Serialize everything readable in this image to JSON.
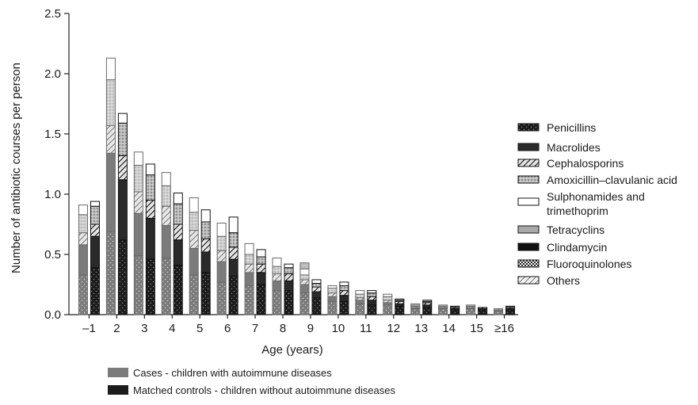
{
  "chart_data": {
    "type": "bar",
    "stacked": true,
    "grouped": true,
    "title": "",
    "xlabel": "Age (years)",
    "ylabel": "Number of antibiotic courses per person",
    "ylim": [
      0,
      2.5
    ],
    "yticks": [
      "0.0",
      "0.5",
      "1.0",
      "1.5",
      "2.0",
      "2.5"
    ],
    "yticks_values": [
      0,
      0.5,
      1.0,
      1.5,
      2.0,
      2.5
    ],
    "categories": [
      "–1",
      "2",
      "3",
      "4",
      "5",
      "6",
      "7",
      "8",
      "9",
      "10",
      "11",
      "12",
      "13",
      "14",
      "15",
      "≥16"
    ],
    "groups": [
      {
        "name": "Cases - children with autoimmune diseases",
        "color": "#7b7b7b"
      },
      {
        "name": "Matched controls - children without autoimmune diseases",
        "color": "#1c1c1c"
      }
    ],
    "drug_classes": [
      {
        "name": "Penicillins",
        "pattern": "dots"
      },
      {
        "name": "Macrolides",
        "pattern": "solid"
      },
      {
        "name": "Cephalosporins",
        "pattern": "hatch"
      },
      {
        "name": "Amoxicillin–clavulanic acid",
        "pattern": "crosshatch"
      },
      {
        "name": "Sulphonamides and trimethoprim",
        "pattern": "white"
      },
      {
        "name": "Tetracyclins",
        "pattern": "light"
      },
      {
        "name": "Clindamycin",
        "pattern": "dark"
      },
      {
        "name": "Fluoroquinolones",
        "pattern": "checker"
      },
      {
        "name": "Others",
        "pattern": "lighthatch"
      }
    ],
    "cases": [
      [
        0.33,
        0.25,
        0.1,
        0.15,
        0.08
      ],
      [
        0.69,
        0.65,
        0.23,
        0.38,
        0.18
      ],
      [
        0.49,
        0.35,
        0.18,
        0.22,
        0.11
      ],
      [
        0.47,
        0.27,
        0.16,
        0.17,
        0.11
      ],
      [
        0.33,
        0.22,
        0.15,
        0.15,
        0.12
      ],
      [
        0.27,
        0.17,
        0.09,
        0.12,
        0.11
      ],
      [
        0.24,
        0.11,
        0.07,
        0.08,
        0.09
      ],
      [
        0.2,
        0.08,
        0.06,
        0.06,
        0.07
      ],
      [
        0.18,
        0.07,
        0.04,
        0.04,
        0.05,
        0.05
      ],
      [
        0.11,
        0.04,
        0.03,
        0.04,
        0.02
      ],
      [
        0.09,
        0.03,
        0.02,
        0.03,
        0.03
      ],
      [
        0.08,
        0.02,
        0.02,
        0.03,
        0.02
      ],
      [
        0.05,
        0.01,
        0.01,
        0.01,
        0.01
      ],
      [
        0.05,
        0.01,
        0.01,
        0.01
      ],
      [
        0.05,
        0.01,
        0.01,
        0.01
      ],
      [
        0.03,
        0.01,
        0.01
      ]
    ],
    "controls": [
      [
        0.39,
        0.26,
        0.1,
        0.15,
        0.04
      ],
      [
        0.62,
        0.5,
        0.2,
        0.27,
        0.08
      ],
      [
        0.46,
        0.34,
        0.15,
        0.21,
        0.09
      ],
      [
        0.41,
        0.21,
        0.13,
        0.17,
        0.09
      ],
      [
        0.35,
        0.17,
        0.11,
        0.14,
        0.1
      ],
      [
        0.32,
        0.14,
        0.1,
        0.12,
        0.13
      ],
      [
        0.25,
        0.1,
        0.07,
        0.06,
        0.06
      ],
      [
        0.2,
        0.08,
        0.06,
        0.05,
        0.03
      ],
      [
        0.14,
        0.05,
        0.04,
        0.03,
        0.03
      ],
      [
        0.11,
        0.05,
        0.04,
        0.04,
        0.03
      ],
      [
        0.08,
        0.04,
        0.03,
        0.03,
        0.02
      ],
      [
        0.07,
        0.02,
        0.02,
        0.01,
        0.01
      ],
      [
        0.06,
        0.02,
        0.02,
        0.01,
        0.01
      ],
      [
        0.04,
        0.01,
        0.01,
        0.01
      ],
      [
        0.04,
        0.01,
        0.01
      ],
      [
        0.04,
        0.01,
        0.01,
        0.01
      ]
    ]
  }
}
